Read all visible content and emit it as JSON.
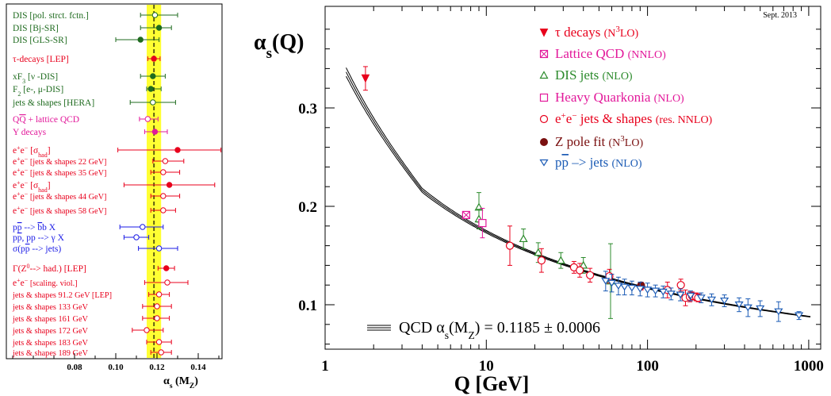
{
  "chart_data": [
    {
      "type": "scatter",
      "subtype": "horizontal-errorbar-summary",
      "xlabel": "α_s (M_Z)",
      "xlim": [
        0.05,
        0.15
      ],
      "xticks": [
        "0.08",
        "0.10",
        "0.12",
        "0.14"
      ],
      "world_average": 0.1185,
      "world_average_uncertainty": 0.0006,
      "band_color": "#ffff33",
      "measurements": [
        {
          "label": "DIS [pol. strct. fctn.]",
          "value": 0.119,
          "err_lo": 0.007,
          "err_hi": 0.011,
          "color": "#1f6b1f",
          "filled": false
        },
        {
          "label": "DIS [Bj-SR]",
          "value": 0.121,
          "err_lo": 0.009,
          "err_hi": 0.006,
          "color": "#1f6b1f",
          "filled": true
        },
        {
          "label": "DIS [GLS-SR]",
          "value": 0.112,
          "err_lo": 0.012,
          "err_hi": 0.009,
          "color": "#1f6b1f",
          "filled": true
        },
        {
          "label": "τ-decays [LEP]",
          "value": 0.1185,
          "err_lo": 0.003,
          "err_hi": 0.003,
          "color": "#e8001c",
          "filled": true
        },
        {
          "label": "xF3 [ν -DIS]",
          "value": 0.118,
          "err_lo": 0.006,
          "err_hi": 0.006,
          "color": "#1f6b1f",
          "filled": true
        },
        {
          "label": "F2 [e-, μ-DIS]",
          "value": 0.117,
          "err_lo": 0.002,
          "err_hi": 0.005,
          "color": "#1f6b1f",
          "filled": true
        },
        {
          "label": "jets & shapes [HERA]",
          "value": 0.118,
          "err_lo": 0.011,
          "err_hi": 0.011,
          "color": "#1f6b1f",
          "filled": false
        },
        {
          "label": "QQ + lattice QCD",
          "value": 0.1155,
          "err_lo": 0.004,
          "err_hi": 0.005,
          "color": "#e2189a",
          "filled": false
        },
        {
          "label": "Υ decays",
          "value": 0.119,
          "err_lo": 0.005,
          "err_hi": 0.006,
          "color": "#e2189a",
          "filled": true
        },
        {
          "label": "e+e− [σhad]",
          "value": 0.13,
          "err_lo": 0.029,
          "err_hi": 0.021,
          "color": "#e8001c",
          "filled": true
        },
        {
          "label": "e+e− [jets & shapes 22 GeV]",
          "value": 0.124,
          "err_lo": 0.006,
          "err_hi": 0.009,
          "color": "#e8001c",
          "filled": false
        },
        {
          "label": "e+e− [jets & shapes 35 GeV]",
          "value": 0.123,
          "err_lo": 0.006,
          "err_hi": 0.008,
          "color": "#e8001c",
          "filled": false
        },
        {
          "label": "e+e− [σhad]",
          "value": 0.126,
          "err_lo": 0.022,
          "err_hi": 0.022,
          "color": "#e8001c",
          "filled": true
        },
        {
          "label": "e+e− [jets & shapes 44 GeV]",
          "value": 0.123,
          "err_lo": 0.006,
          "err_hi": 0.008,
          "color": "#e8001c",
          "filled": false
        },
        {
          "label": "e+e− [jets & shapes 58 GeV]",
          "value": 0.123,
          "err_lo": 0.006,
          "err_hi": 0.006,
          "color": "#e8001c",
          "filled": false
        },
        {
          "label": "pp --> bb X",
          "value": 0.113,
          "err_lo": 0.011,
          "err_hi": 0.01,
          "color": "#1a1ae6",
          "filled": false
        },
        {
          "label": "pp, pp --> γ X",
          "value": 0.11,
          "err_lo": 0.006,
          "err_hi": 0.006,
          "color": "#1a1ae6",
          "filled": false
        },
        {
          "label": "σ(pp --> jets)",
          "value": 0.121,
          "err_lo": 0.01,
          "err_hi": 0.009,
          "color": "#1a1ae6",
          "filled": false
        },
        {
          "label": "Γ(Z0--> had.) [LEP]",
          "value": 0.1245,
          "err_lo": 0.004,
          "err_hi": 0.004,
          "color": "#e8001c",
          "filled": true
        },
        {
          "label": "e+e− [scaling. viol.]",
          "value": 0.125,
          "err_lo": 0.011,
          "err_hi": 0.01,
          "color": "#e8001c",
          "filled": false
        },
        {
          "label": "jets & shapes 91.2 GeV [LEP]",
          "value": 0.121,
          "err_lo": 0.005,
          "err_hi": 0.005,
          "color": "#e8001c",
          "filled": false
        },
        {
          "label": "jets & shapes 133 GeV",
          "value": 0.12,
          "err_lo": 0.007,
          "err_hi": 0.007,
          "color": "#e8001c",
          "filled": false
        },
        {
          "label": "jets & shapes 161 GeV",
          "value": 0.12,
          "err_lo": 0.007,
          "err_hi": 0.006,
          "color": "#e8001c",
          "filled": false
        },
        {
          "label": "jets & shapes 172 GeV",
          "value": 0.115,
          "err_lo": 0.007,
          "err_hi": 0.008,
          "color": "#e8001c",
          "filled": false
        },
        {
          "label": "jets & shapes 183 GeV",
          "value": 0.121,
          "err_lo": 0.006,
          "err_hi": 0.006,
          "color": "#e8001c",
          "filled": false
        },
        {
          "label": "jets & shapes 189 GeV",
          "value": 0.122,
          "err_lo": 0.005,
          "err_hi": 0.005,
          "color": "#e8001c",
          "filled": false
        }
      ]
    },
    {
      "type": "scatter",
      "subtype": "log-x errorbar with theory band",
      "ylabel": "α_s(Q)",
      "xlabel": "Q [GeV]",
      "xscale": "log",
      "xlim": [
        1,
        1100
      ],
      "ylim": [
        0.05,
        0.4
      ],
      "xticks": [
        "1",
        "10",
        "100",
        "1000"
      ],
      "yticks": [
        "0.1",
        "0.2",
        "0.3"
      ],
      "corner_text": "Sept. 2013",
      "band_legend": "QCD α_s(M_Z) = 0.1185 ± 0.0006",
      "band_center_alpha_mz": 0.1185,
      "series": [
        {
          "name": "τ decays (N3LO)",
          "marker": "triangle-down-filled",
          "color": "#e8001c",
          "points": [
            {
              "x": 1.78,
              "y": 0.33,
              "err": 0.012
            }
          ]
        },
        {
          "name": "Lattice QCD (NNLO)",
          "marker": "square-x",
          "color": "#e2189a",
          "points": [
            {
              "x": 7.5,
              "y": 0.1912,
              "err": 0.002
            }
          ]
        },
        {
          "name": "DIS jets (NLO)",
          "marker": "triangle-up-open",
          "color": "#2b8a2b",
          "points": [
            {
              "x": 9.0,
              "y": 0.199,
              "err": 0.015
            },
            {
              "x": 9.0,
              "y": 0.187,
              "err": 0.01
            },
            {
              "x": 17.0,
              "y": 0.167,
              "err": 0.01
            },
            {
              "x": 21.0,
              "y": 0.153,
              "err": 0.01
            },
            {
              "x": 29.0,
              "y": 0.145,
              "err": 0.008
            },
            {
              "x": 40.0,
              "y": 0.14,
              "err": 0.008
            },
            {
              "x": 59.0,
              "y": 0.124,
              "err": 0.038
            }
          ]
        },
        {
          "name": "Heavy Quarkonia (NLO)",
          "marker": "square-open",
          "color": "#e2189a",
          "points": [
            {
              "x": 9.46,
              "y": 0.183,
              "err": 0.015
            }
          ]
        },
        {
          "name": "e+e- jets & shapes (res. NNLO)",
          "marker": "circle-open",
          "color": "#e8001c",
          "points": [
            {
              "x": 14.0,
              "y": 0.16,
              "err": 0.02
            },
            {
              "x": 22.0,
              "y": 0.145,
              "err": 0.012
            },
            {
              "x": 35.0,
              "y": 0.138,
              "err": 0.006
            },
            {
              "x": 38.0,
              "y": 0.135,
              "err": 0.007
            },
            {
              "x": 44.0,
              "y": 0.13,
              "err": 0.007
            },
            {
              "x": 58.0,
              "y": 0.129,
              "err": 0.007
            },
            {
              "x": 91.2,
              "y": 0.119,
              "err": 0.004
            },
            {
              "x": 133.0,
              "y": 0.115,
              "err": 0.008
            },
            {
              "x": 161.0,
              "y": 0.12,
              "err": 0.006
            },
            {
              "x": 172.0,
              "y": 0.107,
              "err": 0.008
            },
            {
              "x": 183.0,
              "y": 0.108,
              "err": 0.005
            },
            {
              "x": 189.0,
              "y": 0.109,
              "err": 0.004
            },
            {
              "x": 200.0,
              "y": 0.108,
              "err": 0.004
            },
            {
              "x": 206.0,
              "y": 0.107,
              "err": 0.004
            }
          ]
        },
        {
          "name": "Z pole fit (N3LO)",
          "marker": "circle-filled",
          "color": "#7a1010",
          "points": [
            {
              "x": 91.19,
              "y": 0.1197,
              "err": 0.0028
            }
          ]
        },
        {
          "name": "pp(-) --> jets (NLO)",
          "marker": "triangle-down-open",
          "color": "#1b5bb5",
          "points": [
            {
              "x": 55,
              "y": 0.124,
              "err": 0.01
            },
            {
              "x": 60,
              "y": 0.122,
              "err": 0.009
            },
            {
              "x": 66,
              "y": 0.119,
              "err": 0.009
            },
            {
              "x": 72,
              "y": 0.118,
              "err": 0.008
            },
            {
              "x": 80,
              "y": 0.117,
              "err": 0.007
            },
            {
              "x": 90,
              "y": 0.116,
              "err": 0.007
            },
            {
              "x": 100,
              "y": 0.115,
              "err": 0.007
            },
            {
              "x": 112,
              "y": 0.114,
              "err": 0.006
            },
            {
              "x": 125,
              "y": 0.113,
              "err": 0.006
            },
            {
              "x": 140,
              "y": 0.111,
              "err": 0.006
            },
            {
              "x": 160,
              "y": 0.11,
              "err": 0.006
            },
            {
              "x": 185,
              "y": 0.109,
              "err": 0.005
            },
            {
              "x": 215,
              "y": 0.107,
              "err": 0.005
            },
            {
              "x": 250,
              "y": 0.105,
              "err": 0.006
            },
            {
              "x": 300,
              "y": 0.104,
              "err": 0.006
            },
            {
              "x": 370,
              "y": 0.1,
              "err": 0.007
            },
            {
              "x": 420,
              "y": 0.097,
              "err": 0.009
            },
            {
              "x": 500,
              "y": 0.096,
              "err": 0.008
            },
            {
              "x": 650,
              "y": 0.093,
              "err": 0.01
            },
            {
              "x": 870,
              "y": 0.089,
              "err": 0.004
            }
          ]
        }
      ]
    }
  ]
}
